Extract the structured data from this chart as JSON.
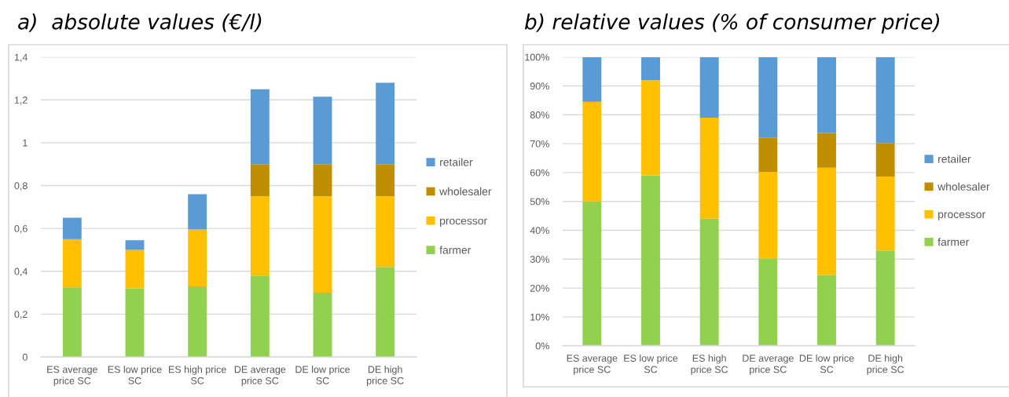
{
  "chart_data": [
    {
      "type": "bar",
      "stacked": true,
      "title": "a)  absolute values (€/l)",
      "categories": [
        "ES average\nprice SC",
        "ES low price\nSC",
        "ES high price\nSC",
        "DE average\nprice SC",
        "DE low price\nSC",
        "DE high\nprice SC"
      ],
      "series": [
        {
          "name": "farmer",
          "color": "#92d050",
          "values": [
            0.325,
            0.32,
            0.33,
            0.38,
            0.3,
            0.42
          ]
        },
        {
          "name": "processor",
          "color": "#ffc000",
          "values": [
            0.225,
            0.18,
            0.265,
            0.37,
            0.45,
            0.33
          ]
        },
        {
          "name": "wholesaler",
          "color": "#bf8f00",
          "values": [
            null,
            null,
            null,
            0.15,
            0.15,
            0.15
          ]
        },
        {
          "name": "retailer",
          "color": "#5b9bd5",
          "values": [
            0.1,
            0.045,
            0.165,
            0.35,
            0.315,
            0.38
          ]
        }
      ],
      "ylim": [
        0,
        1.4
      ],
      "yticks": [
        0,
        {
          "value": 0.2,
          "label": "0,2"
        },
        {
          "value": 0.4,
          "label": "0,4"
        },
        {
          "value": 0.6,
          "label": "0,6"
        },
        {
          "value": 0.8,
          "label": "0,8"
        },
        1,
        {
          "value": 1.2,
          "label": "1,2"
        },
        {
          "value": 1.4,
          "label": "1,4"
        }
      ],
      "grid": "y",
      "legend": "right"
    },
    {
      "type": "bar",
      "stacked": true,
      "title": "b) relative values (% of consumer price)",
      "categories": [
        "ES average\nprice SC",
        "ES low price\nSC",
        "ES high\nprice SC",
        "DE average\nprice SC",
        "DE low price\nSC",
        "DE high\nprice SC"
      ],
      "series": [
        {
          "name": "farmer",
          "color": "#92d050",
          "values": [
            50,
            59,
            44,
            30.3,
            24.5,
            33
          ]
        },
        {
          "name": "processor",
          "color": "#ffc000",
          "values": [
            34.5,
            33,
            35,
            29.9,
            37.2,
            25.6
          ]
        },
        {
          "name": "wholesaler",
          "color": "#bf8f00",
          "values": [
            null,
            null,
            null,
            11.9,
            12,
            11.6
          ]
        },
        {
          "name": "retailer",
          "color": "#5b9bd5",
          "values": [
            15.5,
            8,
            21,
            27.9,
            26.3,
            29.8
          ]
        }
      ],
      "ylim": [
        0,
        100
      ],
      "yticks": [
        {
          "value": 0,
          "label": "0%"
        },
        {
          "value": 10,
          "label": "10%"
        },
        {
          "value": 20,
          "label": "20%"
        },
        {
          "value": 30,
          "label": "30%"
        },
        {
          "value": 40,
          "label": "40%"
        },
        {
          "value": 50,
          "label": "50%"
        },
        {
          "value": 60,
          "label": "60%"
        },
        {
          "value": 70,
          "label": "70%"
        },
        {
          "value": 80,
          "label": "80%"
        },
        {
          "value": 90,
          "label": "90%"
        },
        {
          "value": 100,
          "label": "100%"
        }
      ],
      "grid": "y",
      "legend": "right"
    }
  ]
}
